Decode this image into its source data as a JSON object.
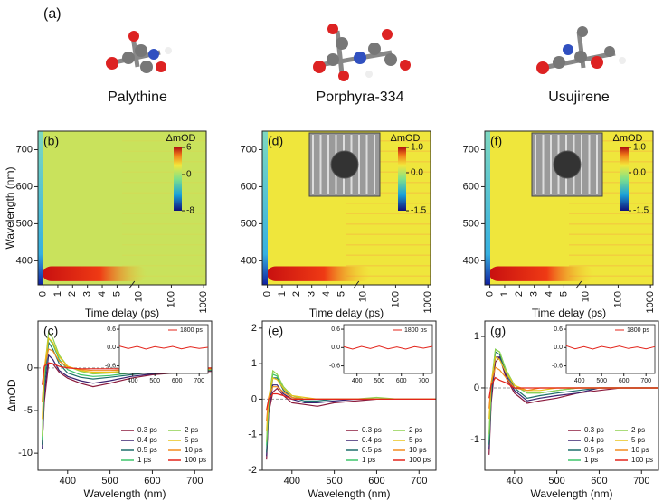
{
  "label_a": "(a)",
  "molecules": [
    {
      "name": "Palythine"
    },
    {
      "name": "Porphyra-334"
    },
    {
      "name": "Usujirene"
    }
  ],
  "chart_data": [
    {
      "type": "heatmap",
      "panel_label": "(b)",
      "x_label": "Time delay (ps)",
      "y_label": "Wavelength (nm)",
      "xlim": [
        -0.34,
        1200
      ],
      "xticks": [
        0,
        1,
        2,
        3,
        4,
        5,
        10,
        100,
        1000
      ],
      "ylim": [
        335,
        750
      ],
      "yticks": [
        400,
        500,
        600,
        700
      ],
      "colorbar_label": "ΔmOD",
      "zlim": [
        -8,
        6
      ],
      "zticks": [
        6,
        0,
        -8
      ]
    },
    {
      "type": "heatmap",
      "panel_label": "(d)",
      "x_label": "Time delay (ps)",
      "xlim": [
        -0.34,
        1200
      ],
      "xticks": [
        0,
        1,
        2,
        3,
        4,
        5,
        10,
        100,
        1000
      ],
      "ylim": [
        335,
        750
      ],
      "yticks": [
        400,
        500,
        600,
        700
      ],
      "colorbar_label": "ΔmOD",
      "zlim": [
        -1.5,
        1.0
      ],
      "zticks": [
        {
          "value": 1.0,
          "label": "1.0"
        },
        {
          "value": 0,
          "label": "0.0"
        },
        -1.5
      ]
    },
    {
      "type": "heatmap",
      "panel_label": "(f)",
      "x_label": "Time delay (ps)",
      "xlim": [
        -0.34,
        1200
      ],
      "xticks": [
        0,
        1,
        2,
        3,
        4,
        5,
        10,
        100,
        1000
      ],
      "ylim": [
        335,
        750
      ],
      "yticks": [
        400,
        500,
        600,
        700
      ],
      "colorbar_label": "ΔmOD",
      "zlim": [
        -1.5,
        1.0
      ],
      "zticks": [
        {
          "value": 1.0,
          "label": "1.0"
        },
        {
          "value": 0,
          "label": "0.0"
        },
        -1.5
      ]
    },
    {
      "type": "line",
      "panel_label": "(c)",
      "x_label": "Wavelength (nm)",
      "y_label": "ΔmOD",
      "xlim": [
        330,
        740
      ],
      "xticks": [
        400,
        500,
        600,
        700
      ],
      "ylim": [
        -12,
        5.5
      ],
      "yticks": [
        -10,
        -5,
        0
      ],
      "x": [
        340,
        345,
        355,
        365,
        380,
        400,
        430,
        460,
        500,
        550,
        600,
        650,
        700,
        740
      ],
      "series": [
        {
          "name": "0.3 ps",
          "color": "#8b1a3c",
          "values": [
            -9,
            -4,
            0.5,
            0.5,
            -0.5,
            -1.2,
            -1.8,
            -2.2,
            -1.8,
            -1.2,
            -0.8,
            -0.6,
            -0.5,
            -0.4
          ]
        },
        {
          "name": "0.4 ps",
          "color": "#3a2270",
          "values": [
            -9.5,
            -3,
            1.5,
            1,
            -0.3,
            -1,
            -1.5,
            -1.8,
            -1.5,
            -1,
            -0.7,
            -0.5,
            -0.4,
            -0.3
          ]
        },
        {
          "name": "0.5 ps",
          "color": "#1d6e6a",
          "values": [
            -9,
            -2,
            3,
            2.2,
            0.5,
            -0.6,
            -1.1,
            -1.3,
            -1.1,
            -0.8,
            -0.5,
            -0.4,
            -0.3,
            -0.3
          ]
        },
        {
          "name": "1 ps",
          "color": "#3ec66b",
          "values": [
            -8.5,
            -1,
            3.5,
            2.8,
            1,
            -0.2,
            -0.8,
            -1,
            -0.9,
            -0.6,
            -0.4,
            -0.3,
            -0.3,
            -0.2
          ]
        },
        {
          "name": "2 ps",
          "color": "#8fd14f",
          "values": [
            -8,
            -0.5,
            4.2,
            3.5,
            1.5,
            0.2,
            -0.4,
            -0.7,
            -0.6,
            -0.4,
            -0.3,
            -0.2,
            -0.2,
            -0.2
          ]
        },
        {
          "name": "5 ps",
          "color": "#e8c21a",
          "values": [
            -6,
            0,
            3.5,
            3,
            1.3,
            0.2,
            -0.3,
            -0.5,
            -0.5,
            -0.3,
            -0.2,
            -0.2,
            -0.1,
            -0.1
          ]
        },
        {
          "name": "10 ps",
          "color": "#f28a1e",
          "values": [
            -4,
            0,
            2.2,
            2,
            0.8,
            0.1,
            -0.2,
            -0.3,
            -0.3,
            -0.2,
            -0.1,
            -0.1,
            -0.1,
            -0.1
          ]
        },
        {
          "name": "100 ps",
          "color": "#e3241b",
          "values": [
            -2,
            0.2,
            0.6,
            0.5,
            0.2,
            0,
            -0.1,
            -0.1,
            -0.1,
            -0.1,
            0,
            0,
            0,
            0
          ]
        }
      ],
      "inset": {
        "x": [
          340,
          380,
          420,
          460,
          500,
          540,
          580,
          620,
          660,
          700,
          740
        ],
        "xlim": [
          340,
          740
        ],
        "xticks": [
          400,
          500,
          600,
          700
        ],
        "ylim": [
          -0.85,
          0.75
        ],
        "yticks": [
          {
            "value": 0.6,
            "label": "0.6"
          },
          {
            "value": 0,
            "label": "0.0"
          },
          -0.6
        ],
        "series": [
          {
            "name": "1800 ps",
            "color": "#e3241b",
            "values": [
              0.05,
              -0.03,
              0.04,
              -0.05,
              0.03,
              -0.02,
              0.04,
              -0.04,
              0.02,
              -0.03,
              0.01
            ]
          }
        ]
      }
    },
    {
      "type": "line",
      "panel_label": "(e)",
      "x_label": "Wavelength (nm)",
      "xlim": [
        330,
        740
      ],
      "xticks": [
        400,
        500,
        600,
        700
      ],
      "ylim": [
        -2,
        2.2
      ],
      "yticks": [
        -2,
        -1,
        0,
        1,
        2
      ],
      "x": [
        340,
        345,
        355,
        365,
        380,
        400,
        430,
        460,
        500,
        550,
        600,
        650,
        700,
        740
      ],
      "series": [
        {
          "name": "0.3 ps",
          "color": "#8b1a3c",
          "values": [
            -1.7,
            -0.4,
            0.2,
            0.3,
            0.1,
            -0.1,
            -0.15,
            -0.2,
            -0.1,
            -0.05,
            0,
            0,
            0,
            0
          ]
        },
        {
          "name": "0.4 ps",
          "color": "#3a2270",
          "values": [
            -1.6,
            -0.3,
            0.4,
            0.4,
            0.15,
            0,
            -0.1,
            -0.1,
            -0.05,
            0,
            0,
            0,
            0,
            0
          ]
        },
        {
          "name": "0.5 ps",
          "color": "#1d6e6a",
          "values": [
            -1.5,
            -0.2,
            0.6,
            0.6,
            0.25,
            0.05,
            -0.05,
            -0.05,
            0,
            0,
            0,
            0,
            0,
            0
          ]
        },
        {
          "name": "1 ps",
          "color": "#3ec66b",
          "values": [
            -1.3,
            -0.1,
            0.7,
            0.65,
            0.3,
            0.1,
            0,
            0,
            0,
            0,
            0,
            0,
            0,
            0
          ]
        },
        {
          "name": "2 ps",
          "color": "#8fd14f",
          "values": [
            -1.2,
            0,
            0.8,
            0.7,
            0.35,
            0.1,
            0,
            0,
            0,
            0,
            0.05,
            0,
            0,
            0
          ]
        },
        {
          "name": "5 ps",
          "color": "#e8c21a",
          "values": [
            -0.9,
            0.05,
            0.6,
            0.55,
            0.3,
            0.1,
            0.05,
            0,
            0,
            0,
            0,
            0,
            0,
            0
          ]
        },
        {
          "name": "10 ps",
          "color": "#f28a1e",
          "values": [
            -0.6,
            0.05,
            0.35,
            0.35,
            0.2,
            0.05,
            0,
            0,
            0,
            0,
            0,
            0,
            0,
            0
          ]
        },
        {
          "name": "100 ps",
          "color": "#e3241b",
          "values": [
            -0.3,
            0,
            0.15,
            0.15,
            0.1,
            0,
            0,
            0,
            0,
            0,
            0,
            0,
            0,
            0
          ]
        }
      ],
      "inset": {
        "x": [
          340,
          380,
          420,
          460,
          500,
          540,
          580,
          620,
          660,
          700,
          740
        ],
        "xlim": [
          340,
          740
        ],
        "xticks": [
          400,
          500,
          600,
          700
        ],
        "ylim": [
          -0.85,
          0.75
        ],
        "yticks": [
          {
            "value": 0.6,
            "label": "0.6"
          },
          {
            "value": 0,
            "label": "0.0"
          },
          -0.6
        ],
        "series": [
          {
            "name": "1800 ps",
            "color": "#e3241b",
            "values": [
              0.03,
              -0.05,
              0.04,
              -0.03,
              0.05,
              -0.04,
              0.02,
              -0.05,
              0.03,
              -0.02,
              0.04
            ]
          }
        ]
      }
    },
    {
      "type": "line",
      "panel_label": "(g)",
      "x_label": "Wavelength (nm)",
      "xlim": [
        330,
        740
      ],
      "xticks": [
        400,
        500,
        600,
        700
      ],
      "ylim": [
        -1.6,
        1.3
      ],
      "yticks": [
        -1,
        0,
        1
      ],
      "x": [
        340,
        345,
        355,
        365,
        380,
        400,
        430,
        460,
        500,
        550,
        600,
        650,
        700,
        740
      ],
      "series": [
        {
          "name": "0.3 ps",
          "color": "#8b1a3c",
          "values": [
            -1.3,
            -0.3,
            0.5,
            0.6,
            0.2,
            -0.1,
            -0.3,
            -0.25,
            -0.2,
            -0.1,
            -0.05,
            0,
            0,
            0
          ]
        },
        {
          "name": "0.4 ps",
          "color": "#3a2270",
          "values": [
            -1.2,
            -0.2,
            0.6,
            0.6,
            0.25,
            -0.05,
            -0.25,
            -0.2,
            -0.15,
            -0.1,
            0,
            0,
            0,
            0
          ]
        },
        {
          "name": "0.5 ps",
          "color": "#1d6e6a",
          "values": [
            -1.1,
            -0.1,
            0.7,
            0.65,
            0.3,
            0,
            -0.2,
            -0.15,
            -0.1,
            -0.05,
            0,
            0,
            0,
            0
          ]
        },
        {
          "name": "1 ps",
          "color": "#3ec66b",
          "values": [
            -1,
            0,
            0.75,
            0.7,
            0.35,
            0.05,
            -0.1,
            -0.1,
            -0.05,
            0,
            0,
            0,
            0,
            0
          ]
        },
        {
          "name": "2 ps",
          "color": "#8fd14f",
          "values": [
            -0.9,
            0.05,
            0.75,
            0.7,
            0.35,
            0.05,
            -0.1,
            -0.1,
            -0.05,
            0,
            0,
            0,
            0,
            0
          ]
        },
        {
          "name": "5 ps",
          "color": "#e8c21a",
          "values": [
            -0.6,
            0.1,
            0.6,
            0.55,
            0.3,
            0.05,
            -0.05,
            -0.05,
            0,
            0,
            0,
            0,
            0,
            0
          ]
        },
        {
          "name": "10 ps",
          "color": "#f28a1e",
          "values": [
            -0.4,
            0.1,
            0.4,
            0.35,
            0.2,
            0,
            -0.05,
            0,
            0,
            0,
            0,
            0,
            0,
            0
          ]
        },
        {
          "name": "100 ps",
          "color": "#e3241b",
          "values": [
            -0.2,
            0.05,
            0.2,
            0.15,
            0.1,
            0,
            0,
            0,
            0,
            0,
            0,
            0,
            0,
            0
          ]
        }
      ],
      "inset": {
        "x": [
          340,
          380,
          420,
          460,
          500,
          540,
          580,
          620,
          660,
          700,
          740
        ],
        "xlim": [
          340,
          740
        ],
        "xticks": [
          400,
          500,
          600,
          700
        ],
        "ylim": [
          -0.85,
          0.75
        ],
        "yticks": [
          {
            "value": 0.6,
            "label": "0.6"
          },
          {
            "value": 0,
            "label": "0.0"
          },
          -0.6
        ],
        "series": [
          {
            "name": "1800 ps",
            "color": "#e3241b",
            "values": [
              0.06,
              -0.04,
              0.03,
              -0.05,
              0.04,
              -0.02,
              0.05,
              -0.03,
              0.02,
              -0.04,
              0.03
            ]
          }
        ]
      }
    }
  ]
}
